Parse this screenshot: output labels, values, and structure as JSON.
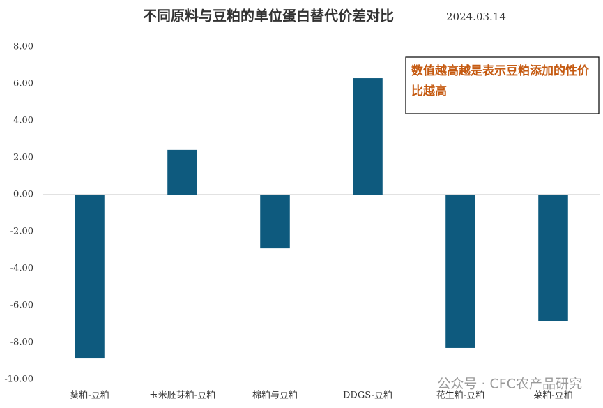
{
  "chart_data": {
    "type": "bar",
    "title": "不同原料与豆粕的单位蛋白替代价差对比",
    "subtitle": "2024.03.14",
    "annotation": "数值越高越是表示豆粕添加的性价比越高",
    "categories": [
      "葵粕-豆粕",
      "玉米胚芽粕-豆粕",
      "棉粕与豆粕",
      "DDGS-豆粕",
      "花生粕-豆粕",
      "菜粕-豆粕"
    ],
    "values": [
      -8.87,
      2.42,
      -2.91,
      6.3,
      -8.3,
      -6.83
    ],
    "color": "#0e5a7e",
    "ylim": [
      -10,
      8
    ],
    "yticks": [
      {
        "value": -10,
        "label": "-10.00"
      },
      {
        "value": -8,
        "label": "-8.00"
      },
      {
        "value": -6,
        "label": "-6.00"
      },
      {
        "value": -4,
        "label": "-4.00"
      },
      {
        "value": -2,
        "label": "-2.00"
      },
      {
        "value": 0,
        "label": "0.00"
      },
      {
        "value": 2,
        "label": "2.00"
      },
      {
        "value": 4,
        "label": "4.00"
      },
      {
        "value": 6,
        "label": "6.00"
      },
      {
        "value": 8,
        "label": "8.00"
      }
    ],
    "grid": false
  },
  "watermark": "公众号 · CFC农产品研究"
}
